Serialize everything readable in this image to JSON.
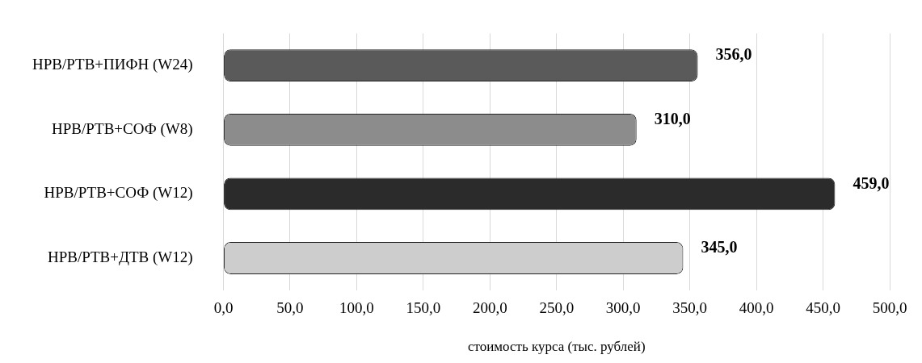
{
  "chart_data": {
    "type": "bar",
    "orientation": "horizontal",
    "xlabel": "стоимость курса (тыс. рублей)",
    "categories": [
      "НРВ/РТВ+ПИФН (W24)",
      "НРВ/РТВ+СОФ (W8)",
      "НРВ/РТВ+СОФ (W12)",
      "НРВ/РТВ+ДТВ (W12)"
    ],
    "values": [
      356,
      310,
      459,
      345
    ],
    "colors": [
      "#5a5a5a",
      "#8c8c8c",
      "#2b2b2b",
      "#cdcdcd"
    ],
    "value_labels": [
      "356,0",
      "310,0",
      "459,0",
      "345,0"
    ],
    "xlim": [
      0,
      500
    ],
    "xticks": [
      {
        "value": 0,
        "label": "0,0"
      },
      {
        "value": 50,
        "label": "50,0"
      },
      {
        "value": 100,
        "label": "100,0"
      },
      {
        "value": 150,
        "label": "150,0"
      },
      {
        "value": 200,
        "label": "200,0"
      },
      {
        "value": 250,
        "label": "250,0"
      },
      {
        "value": 300,
        "label": "300,0"
      },
      {
        "value": 350,
        "label": "350,0"
      },
      {
        "value": 400,
        "label": "400,0"
      },
      {
        "value": 450,
        "label": "450,0"
      },
      {
        "value": 500,
        "label": "500,0"
      }
    ],
    "grid": "x",
    "legend": false
  }
}
